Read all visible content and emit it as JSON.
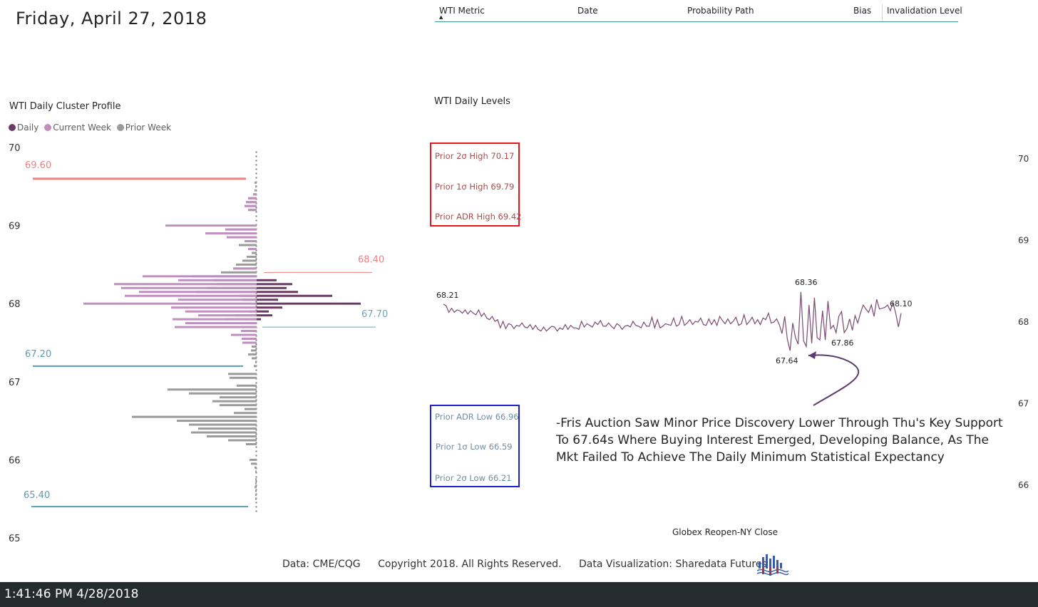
{
  "header": {
    "date": "Friday, April 27, 2018"
  },
  "table": {
    "columns": [
      "WTI Metric",
      "Date",
      "Probability Path",
      "Bias",
      "Invalidation Level"
    ]
  },
  "profile": {
    "title": "WTI Daily Cluster Profile",
    "legend": [
      {
        "label": "Daily",
        "color": "#6b3a63"
      },
      {
        "label": "Current Week",
        "color": "#c08fc0"
      },
      {
        "label": "Prior Week",
        "color": "#9b9b9b"
      }
    ]
  },
  "levels": {
    "title": "WTI Daily Levels",
    "high_box": [
      "Prior 2σ High 70.17",
      "Prior 1σ High 69.79",
      "Prior ADR High 69.42"
    ],
    "low_box": [
      "Prior ADR Low 66.96",
      "Prior 1σ Low 66.59",
      "Prior 2σ Low 66.21"
    ],
    "annotation": [
      "-Fris Auction Saw Minor Price Discovery Lower Through Thu's Key Support",
      "To 67.64s Where Buying Interest Emerged, Developing Balance, As The",
      "Mkt Failed To Achieve The Daily Minimum Statistical Expectancy"
    ],
    "xlabel": "Globex Reopen-NY Close"
  },
  "chart_data": [
    {
      "type": "bar",
      "orientation": "horizontal",
      "title": "WTI Daily Cluster Profile",
      "ylim": [
        65,
        70
      ],
      "yticks": [
        "70",
        "69",
        "68",
        "67",
        "66",
        "65"
      ],
      "reference_lines": [
        {
          "label": "69.60",
          "value": 69.6,
          "color": "#f08080"
        },
        {
          "label": "68.40",
          "value": 68.4,
          "color": "#f08080"
        },
        {
          "label": "67.70",
          "value": 67.7,
          "color": "#6fa8b8"
        },
        {
          "label": "67.20",
          "value": 67.2,
          "color": "#5b9bb5"
        },
        {
          "label": "65.40",
          "value": 65.4,
          "color": "#5b9bb5"
        }
      ],
      "series": [
        {
          "name": "Prior Week",
          "points": [
            [
              69.55,
              3
            ],
            [
              69.5,
              2
            ],
            [
              69.45,
              3
            ],
            [
              69.4,
              5
            ],
            [
              69.35,
              12
            ],
            [
              69.3,
              15
            ],
            [
              69.25,
              17
            ],
            [
              69.2,
              12
            ],
            [
              68.95,
              44
            ],
            [
              68.8,
              17
            ],
            [
              68.75,
              25
            ],
            [
              68.7,
              12
            ],
            [
              68.65,
              7
            ],
            [
              68.6,
              14
            ],
            [
              68.55,
              20
            ],
            [
              68.5,
              29
            ],
            [
              68.45,
              33
            ],
            [
              68.4,
              50
            ],
            [
              68.35,
              90
            ],
            [
              68.3,
              60
            ],
            [
              68.25,
              55
            ],
            [
              68.2,
              70
            ],
            [
              68.15,
              85
            ],
            [
              68.1,
              25
            ],
            [
              68.05,
              20
            ],
            [
              67.9,
              10
            ],
            [
              67.85,
              30
            ],
            [
              67.8,
              45
            ],
            [
              67.75,
              13
            ],
            [
              67.5,
              20
            ],
            [
              67.45,
              7
            ],
            [
              67.4,
              8
            ],
            [
              67.35,
              12
            ],
            [
              67.3,
              7
            ],
            [
              67.25,
              2
            ],
            [
              67.2,
              4
            ],
            [
              67.1,
              40
            ],
            [
              67.05,
              38
            ],
            [
              66.95,
              28
            ],
            [
              66.9,
              125
            ],
            [
              66.85,
              95
            ],
            [
              66.8,
              52
            ],
            [
              66.75,
              62
            ],
            [
              66.7,
              52
            ],
            [
              66.65,
              17
            ],
            [
              66.6,
              32
            ],
            [
              66.55,
              175
            ],
            [
              66.5,
              112
            ],
            [
              66.45,
              95
            ],
            [
              66.4,
              82
            ],
            [
              66.35,
              92
            ],
            [
              66.3,
              70
            ],
            [
              66.25,
              40
            ],
            [
              66.2,
              15
            ],
            [
              66.0,
              10
            ],
            [
              65.95,
              8
            ],
            [
              65.9,
              3
            ],
            [
              65.85,
              2
            ],
            [
              65.75,
              2
            ],
            [
              65.7,
              2
            ],
            [
              65.65,
              3
            ],
            [
              65.6,
              2
            ],
            [
              65.55,
              2
            ],
            [
              65.5,
              2
            ]
          ]
        },
        {
          "name": "Current Week",
          "points": [
            [
              69.4,
              5
            ],
            [
              69.35,
              12
            ],
            [
              69.3,
              15
            ],
            [
              69.25,
              17
            ],
            [
              69.2,
              12
            ],
            [
              69.0,
              128
            ],
            [
              68.95,
              44
            ],
            [
              68.9,
              72
            ],
            [
              68.85,
              42
            ],
            [
              68.8,
              17
            ],
            [
              68.7,
              12
            ],
            [
              68.45,
              33
            ],
            [
              68.35,
              160
            ],
            [
              68.3,
              110
            ],
            [
              68.25,
              200
            ],
            [
              68.2,
              190
            ],
            [
              68.15,
              165
            ],
            [
              68.1,
              185
            ],
            [
              68.05,
              110
            ],
            [
              68.0,
              243
            ],
            [
              67.95,
              120
            ],
            [
              67.9,
              100
            ],
            [
              67.85,
              82
            ],
            [
              67.8,
              118
            ],
            [
              67.75,
              100
            ],
            [
              67.7,
              115
            ],
            [
              67.65,
              22
            ],
            [
              67.6,
              36
            ],
            [
              67.55,
              21
            ],
            [
              67.5,
              20
            ]
          ]
        },
        {
          "name": "Daily",
          "points": [
            [
              68.3,
              28
            ],
            [
              68.25,
              50
            ],
            [
              68.2,
              42
            ],
            [
              68.15,
              58
            ],
            [
              68.1,
              106
            ],
            [
              68.05,
              30
            ],
            [
              68.0,
              146
            ],
            [
              67.95,
              36
            ],
            [
              67.9,
              17
            ],
            [
              67.85,
              22
            ],
            [
              67.8,
              6
            ]
          ]
        }
      ]
    },
    {
      "type": "line",
      "title": "WTI Daily Levels",
      "xlabel": "Globex Reopen-NY Close",
      "ylim": [
        65.6,
        70.2
      ],
      "yticks": [
        "70",
        "69",
        "68",
        "67",
        "66"
      ],
      "annotations": [
        {
          "label": "68.21",
          "value": 68.21
        },
        {
          "label": "68.36",
          "value": 68.36
        },
        {
          "label": "67.64",
          "value": 67.64
        },
        {
          "label": "67.86",
          "value": 67.86
        },
        {
          "label": "68.10",
          "value": 68.1
        }
      ],
      "values": [
        68.21,
        68.19,
        68.11,
        68.16,
        68.11,
        68.14,
        68.13,
        68.1,
        68.14,
        68.09,
        68.13,
        68.1,
        68.08,
        68.14,
        68.06,
        68.1,
        68.04,
        68.02,
        68.06,
        68.0,
        68.02,
        67.92,
        68.0,
        67.91,
        67.97,
        67.96,
        67.91,
        67.95,
        67.94,
        67.98,
        67.93,
        67.92,
        67.96,
        67.9,
        67.95,
        67.9,
        67.88,
        67.93,
        67.88,
        67.91,
        67.94,
        67.93,
        67.88,
        67.92,
        67.9,
        67.96,
        67.9,
        67.95,
        67.92,
        67.92,
        67.9,
        68.0,
        67.93,
        67.97,
        67.95,
        67.93,
        67.99,
        67.96,
        68.01,
        67.94,
        67.94,
        67.98,
        67.94,
        67.91,
        67.97,
        67.95,
        67.9,
        67.94,
        67.95,
        67.93,
        68.0,
        67.95,
        67.94,
        67.92,
        67.99,
        67.94,
        67.94,
        68.05,
        67.92,
        68.02,
        67.92,
        67.94,
        67.97,
        67.96,
        67.95,
        68.04,
        67.94,
        67.96,
        68.06,
        67.95,
        67.98,
        68.02,
        67.96,
        68.0,
        67.99,
        68.04,
        67.96,
        67.95,
        68.03,
        67.96,
        68.02,
        67.95,
        68.06,
        68.01,
        67.97,
        68.03,
        67.97,
        68.0,
        68.05,
        67.95,
        67.97,
        68.08,
        67.96,
        68.0,
        68.05,
        67.97,
        68.02,
        67.96,
        68.04,
        68.02,
        68.1,
        67.98,
        67.99,
        68.03,
        67.96,
        67.85,
        68.06,
        67.78,
        67.64,
        67.98,
        67.8,
        67.72,
        68.36,
        67.76,
        67.69,
        68.2,
        67.73,
        68.29,
        67.8,
        67.77,
        68.13,
        67.77,
        68.25,
        67.91,
        67.95,
        67.86,
        68.06,
        68.12,
        67.86,
        67.91,
        68.03,
        67.89,
        68.07,
        67.98,
        68.1,
        68.2,
        68.15,
        68.11,
        68.2,
        68.06,
        68.27,
        68.15,
        68.16,
        68.17,
        68.2,
        68.13,
        68.23,
        68.1,
        67.93,
        68.1
      ]
    }
  ],
  "footer": {
    "data": "Data: CME/CQG",
    "copyright": "Copyright 2018. All Rights Reserved.",
    "viz": "Data Visualization: Sharedata Futures"
  },
  "status_bar": {
    "time": "1:41:46 PM 4/28/2018"
  }
}
